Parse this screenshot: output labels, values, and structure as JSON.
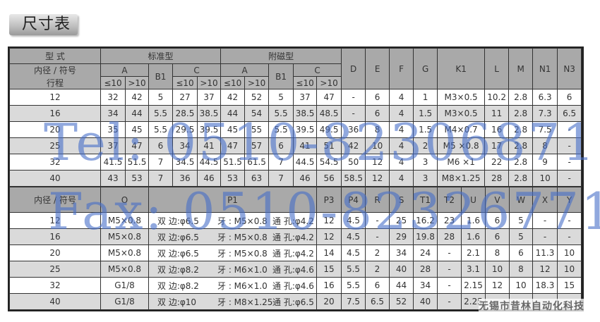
{
  "title": "尺寸表",
  "top": {
    "h_type": "型 式",
    "h_bore": "内径 / 符号",
    "h_stroke": "行程",
    "g_std": "标准型",
    "g_mag": "附磁型",
    "cols": {
      "A": "A",
      "B1": "B1",
      "C": "C",
      "D": "D",
      "E": "E",
      "F": "F",
      "G": "G",
      "K1": "K1",
      "L": "L",
      "M": "M",
      "N1": "N1",
      "N3": "N3"
    },
    "le10": "≤10",
    "gt10": ">10",
    "rows": [
      [
        "12",
        "32",
        "42",
        "5",
        "27",
        "37",
        "42",
        "52",
        "5",
        "37",
        "47",
        "-",
        "6",
        "4",
        "1",
        "M3×0.5",
        "10.2",
        "2.8",
        "6.3",
        "6"
      ],
      [
        "16",
        "34",
        "44",
        "5.5",
        "28.5",
        "38.5",
        "44",
        "54",
        "5.5",
        "38.5",
        "48.5",
        "-",
        "6",
        "4",
        "1.5",
        "M3×0.5",
        "11",
        "2.8",
        "7.3",
        "6.5"
      ],
      [
        "20",
        "35",
        "45",
        "5.5",
        "29.5",
        "39.5",
        "45",
        "55",
        "5.5",
        "39.5",
        "49.5",
        "36",
        "8",
        "4",
        "1.5",
        "M4×0.7",
        "16",
        "2.8",
        "7.5",
        "-"
      ],
      [
        "25",
        "37",
        "47",
        "6",
        "34",
        "41",
        "47",
        "57",
        "6",
        "41",
        "51",
        "42",
        "10",
        "4",
        "2",
        "M5 ×0.8",
        "17",
        "2.8",
        "8",
        "-"
      ],
      [
        "32",
        "41.5",
        "51.5",
        "7",
        "34.5",
        "44.5",
        "51.5",
        "61.5",
        "7",
        "44.5",
        "54.5",
        "50",
        "12",
        "4",
        "3",
        "M6 ×1",
        "22",
        "2.8",
        "9",
        "-"
      ],
      [
        "40",
        "43",
        "53",
        "7",
        "36",
        "46",
        "53",
        "63",
        "7",
        "46",
        "56",
        "58.5",
        "12",
        "4",
        "3",
        "M8×1.25",
        "28",
        "2.8",
        "10",
        "-"
      ]
    ]
  },
  "bottom": {
    "h_bore": "内径 / 符号",
    "cols": [
      "O",
      "P1",
      "P3",
      "P4",
      "R",
      "S",
      "T1",
      "T2",
      "U",
      "V",
      "W",
      "X",
      "Y"
    ],
    "rows": [
      {
        "bore": "12",
        "O": "M5×0.8",
        "p1a": "双 边:φ6.5",
        "p1b": "牙 : M5×0.8",
        "p1c": "通 孔:φ4.2",
        "rest": [
          "12",
          "4.5",
          "-",
          "25",
          "16.2",
          "23",
          "1.6",
          "6",
          "5",
          "-",
          "-"
        ]
      },
      {
        "bore": "16",
        "O": "M5×0.8",
        "p1a": "双 边:φ6.5",
        "p1b": "牙 : M5×0.8",
        "p1c": "通 孔:φ4.2",
        "rest": [
          "12",
          "4.5",
          "-",
          "29",
          "19.8",
          "28",
          "1.6",
          "6",
          "5",
          "-",
          "-"
        ]
      },
      {
        "bore": "20",
        "O": "M5×0.8",
        "p1a": "双 边:φ6.5",
        "p1b": "牙 : M5×0.8",
        "p1c": "通 孔:φ4.2",
        "rest": [
          "14",
          "4.5",
          "2",
          "34",
          "24",
          "-",
          "2.1",
          "8",
          "6",
          "11.3",
          "10"
        ]
      },
      {
        "bore": "25",
        "O": "M5×0.8",
        "p1a": "双 边:φ8.2",
        "p1b": "牙 : M6×1.0",
        "p1c": "通 孔:φ4.6",
        "rest": [
          "15",
          "5.5",
          "2",
          "40",
          "28",
          "-",
          "3.1",
          "10",
          "8",
          "12",
          "10"
        ]
      },
      {
        "bore": "32",
        "O": "G1/8",
        "p1a": "双 边:φ8.2",
        "p1b": "牙 : M6×1.0",
        "p1c": "通 孔:φ4.6",
        "rest": [
          "16",
          "5.5",
          "6",
          "44",
          "34",
          "-",
          "2.15",
          "12",
          "10",
          "18.3",
          "15"
        ]
      },
      {
        "bore": "40",
        "O": "G1/8",
        "p1a": "双 边:φ10",
        "p1b": "牙 : M8×1.25",
        "p1c": "通 孔:φ6.5",
        "rest": [
          "20",
          "7.5",
          "6.5",
          "52",
          "40",
          "-",
          "2.25",
          "",
          "",
          "",
          ""
        ]
      }
    ]
  },
  "watermarks": {
    "tel": "Tel: 0510-82306871",
    "fax": "Fax: 0510-82326771",
    "company": "无锡市昔林自动化科技"
  }
}
